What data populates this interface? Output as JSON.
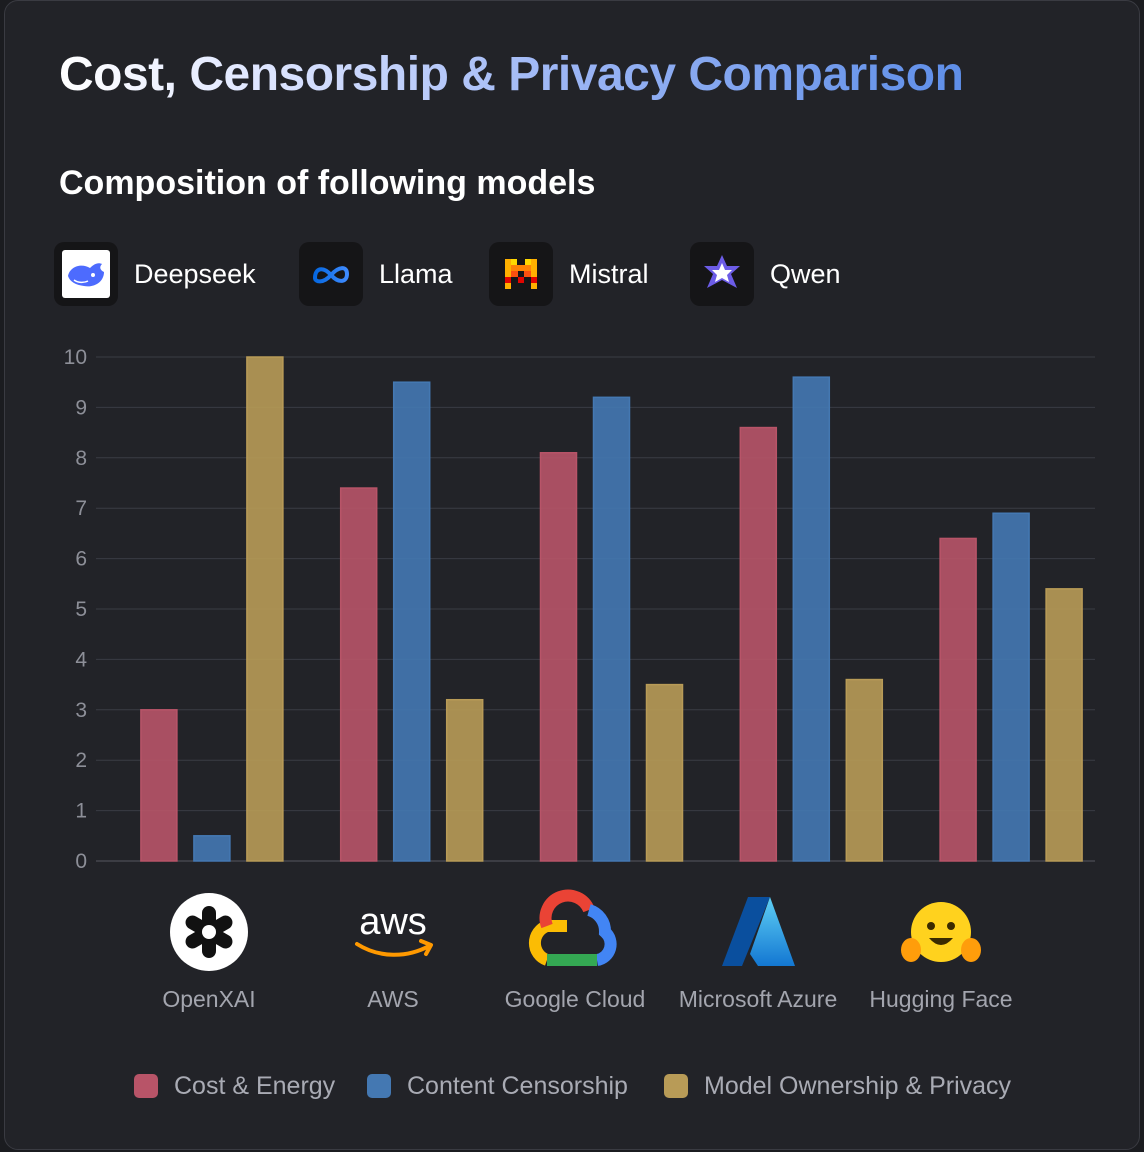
{
  "title": "Cost, Censorship & Privacy Comparison",
  "subtitle": "Composition of following models",
  "models": [
    {
      "name": "Deepseek",
      "icon": "deepseek-whale-icon"
    },
    {
      "name": "Llama",
      "icon": "meta-infinity-icon"
    },
    {
      "name": "Mistral",
      "icon": "mistral-m-icon"
    },
    {
      "name": "Qwen",
      "icon": "qwen-star-icon"
    }
  ],
  "chart_data": {
    "type": "bar",
    "categories": [
      "OpenXAI",
      "AWS",
      "Google Cloud",
      "Microsoft Azure",
      "Hugging Face"
    ],
    "category_icons": [
      "openxai-icon",
      "aws-icon",
      "google-cloud-icon",
      "microsoft-azure-icon",
      "hugging-face-icon"
    ],
    "series": [
      {
        "name": "Cost & Energy",
        "color": "#b85468",
        "values": [
          3.0,
          7.4,
          8.1,
          8.6,
          6.4
        ]
      },
      {
        "name": "Content Censorship",
        "color": "#4478b2",
        "values": [
          0.5,
          9.5,
          9.2,
          9.6,
          6.9
        ]
      },
      {
        "name": "Model Ownership & Privacy",
        "color": "#b89b57",
        "values": [
          10.0,
          3.2,
          3.5,
          3.6,
          5.4
        ]
      }
    ],
    "yticks": [
      0,
      1,
      2,
      3,
      4,
      5,
      6,
      7,
      8,
      9,
      10
    ],
    "ylim": [
      0,
      10
    ],
    "grid": true,
    "legend": "bottom",
    "xlabel": "",
    "ylabel": ""
  }
}
